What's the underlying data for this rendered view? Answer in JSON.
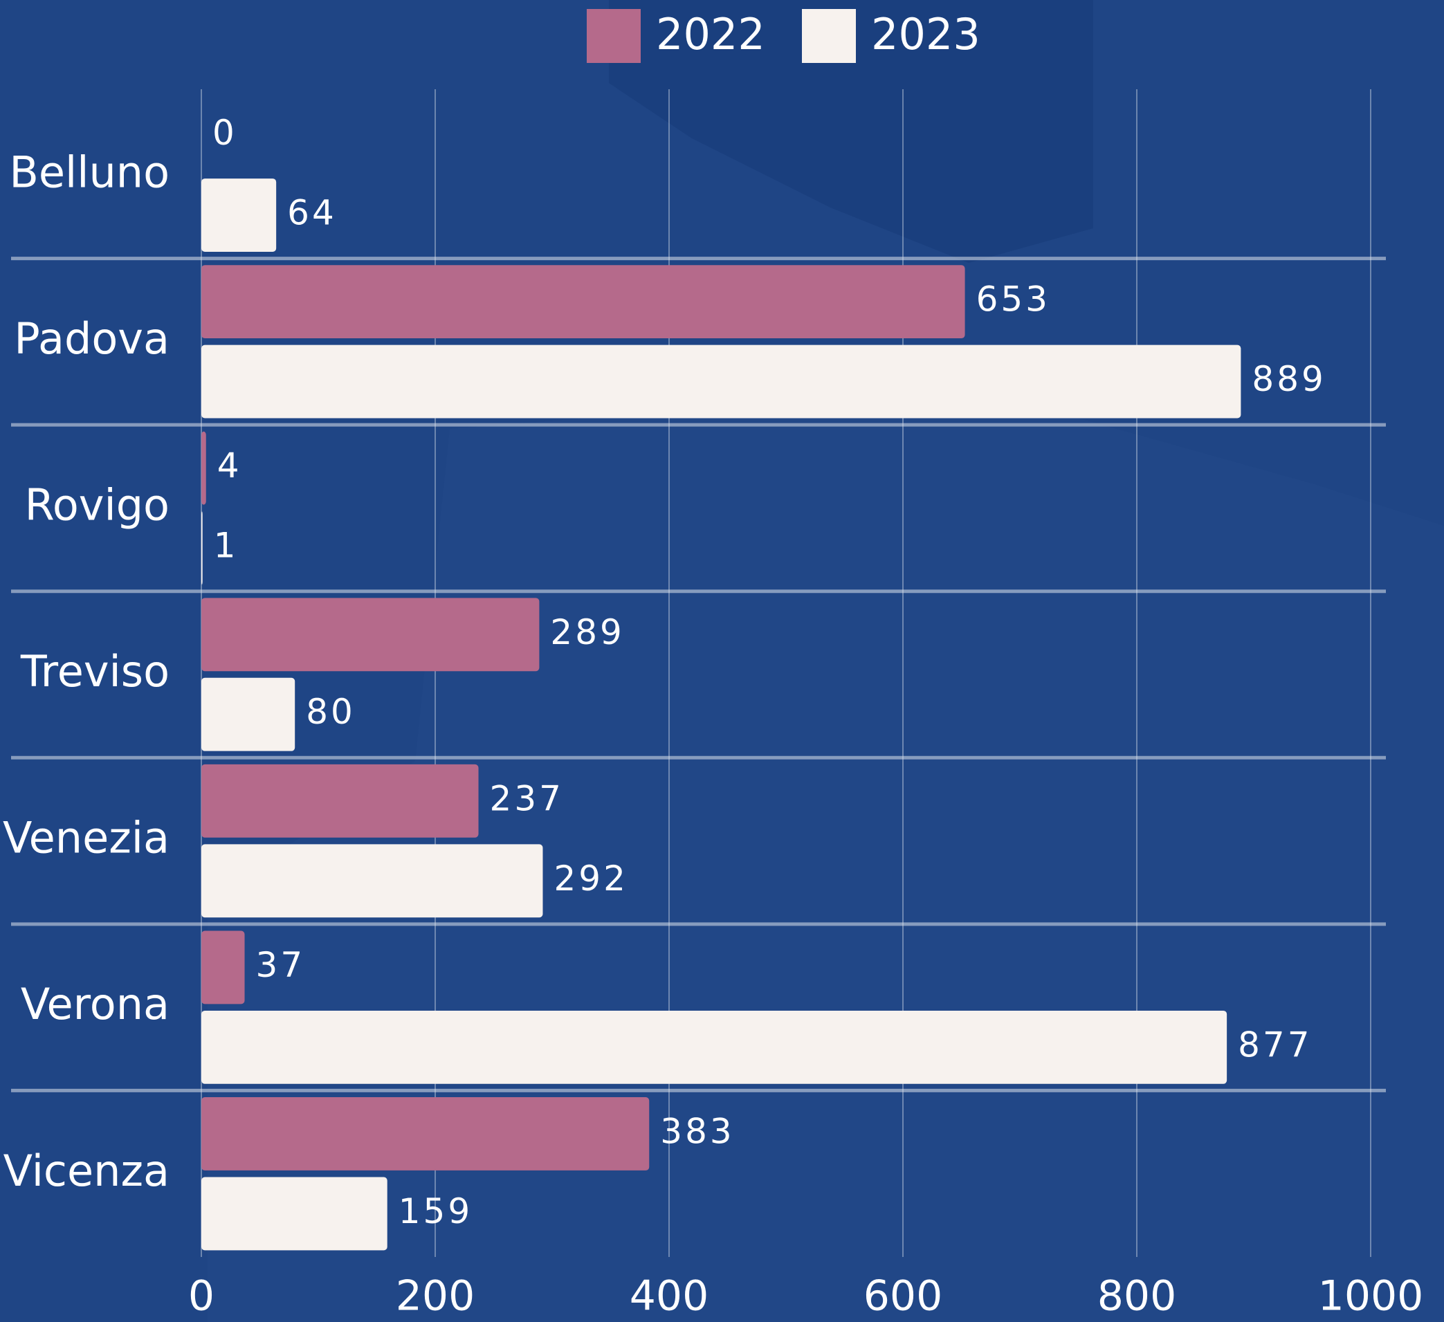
{
  "chart_data": {
    "type": "bar",
    "orientation": "horizontal",
    "categories": [
      "Belluno",
      "Padova",
      "Rovigo",
      "Treviso",
      "Venezia",
      "Verona",
      "Vicenza"
    ],
    "series": [
      {
        "name": "2022",
        "color": "#b56a8b",
        "values": [
          0,
          653,
          4,
          289,
          237,
          37,
          383
        ]
      },
      {
        "name": "2023",
        "color": "#f7f2ee",
        "values": [
          64,
          889,
          1,
          80,
          292,
          877,
          159
        ]
      }
    ],
    "xlim": [
      0,
      1000
    ],
    "xticks": [
      0,
      200,
      400,
      600,
      800,
      1000
    ],
    "grid": true,
    "legend": "top"
  }
}
